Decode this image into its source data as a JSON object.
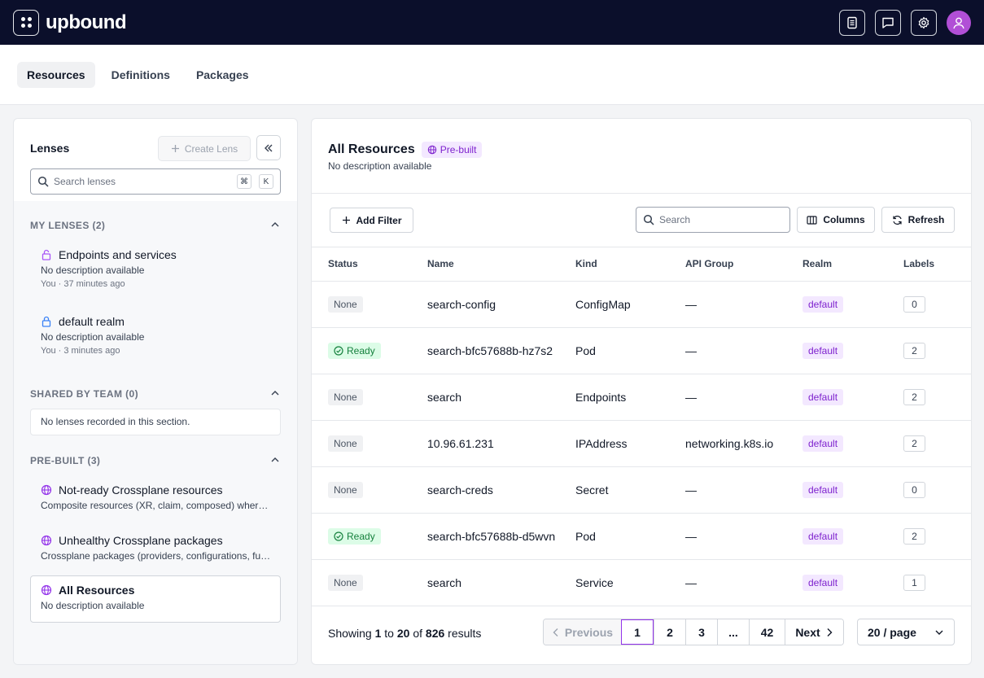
{
  "topbar": {
    "logo": "upbound",
    "icons": [
      "docs-icon",
      "chat-icon",
      "gear-icon",
      "user-icon"
    ]
  },
  "tabs": [
    {
      "label": "Resources",
      "active": true
    },
    {
      "label": "Definitions",
      "active": false
    },
    {
      "label": "Packages",
      "active": false
    }
  ],
  "lenses": {
    "title": "Lenses",
    "create_label": "Create Lens",
    "search_placeholder": "Search lenses",
    "shortcut_keys": [
      "⌘",
      "K"
    ],
    "sections": {
      "mine": {
        "heading": "MY LENSES (2)",
        "items": [
          {
            "name": "Endpoints and services",
            "description": "No description available",
            "owner": "You",
            "time": "37 minutes ago",
            "lock_color": "#a855f7"
          },
          {
            "name": "default realm",
            "description": "No description available",
            "owner": "You",
            "time": "3 minutes ago",
            "lock_color": "#3b82f6"
          }
        ]
      },
      "shared": {
        "heading": "SHARED BY TEAM (0)",
        "empty": "No lenses recorded in this section."
      },
      "prebuilt": {
        "heading": "PRE-BUILT (3)",
        "items": [
          {
            "name": "Not-ready Crossplane resources",
            "description": "Composite resources (XR, claim, composed) where status is not ready"
          },
          {
            "name": "Unhealthy Crossplane packages",
            "description": "Crossplane packages (providers, configurations, functions) that are unhealthy"
          },
          {
            "name": "All Resources",
            "description": "No description available"
          }
        ]
      }
    }
  },
  "main": {
    "title": "All Resources",
    "badge": "Pre-built",
    "description": "No description available",
    "add_filter": "Add Filter",
    "search_placeholder": "Search",
    "columns_label": "Columns",
    "refresh_label": "Refresh",
    "headers": [
      "Status",
      "Name",
      "Kind",
      "API Group",
      "Realm",
      "Labels"
    ],
    "rows": [
      {
        "status": "None",
        "name": "search-config",
        "kind": "ConfigMap",
        "api_group": "—",
        "realm": "default",
        "labels": "0"
      },
      {
        "status": "Ready",
        "name": "search-bfc57688b-hz7s2",
        "kind": "Pod",
        "api_group": "—",
        "realm": "default",
        "labels": "2"
      },
      {
        "status": "None",
        "name": "search",
        "kind": "Endpoints",
        "api_group": "—",
        "realm": "default",
        "labels": "2"
      },
      {
        "status": "None",
        "name": "10.96.61.231",
        "kind": "IPAddress",
        "api_group": "networking.k8s.io",
        "realm": "default",
        "labels": "2"
      },
      {
        "status": "None",
        "name": "search-creds",
        "kind": "Secret",
        "api_group": "—",
        "realm": "default",
        "labels": "0"
      },
      {
        "status": "Ready",
        "name": "search-bfc57688b-d5wvn",
        "kind": "Pod",
        "api_group": "—",
        "realm": "default",
        "labels": "2"
      },
      {
        "status": "None",
        "name": "search",
        "kind": "Service",
        "api_group": "—",
        "realm": "default",
        "labels": "1"
      }
    ],
    "footer": {
      "showing_prefix": "Showing",
      "from": "1",
      "to_word": "to",
      "to": "20",
      "of_word": "of",
      "total": "826",
      "results_word": "results",
      "previous": "Previous",
      "next": "Next",
      "pages": [
        "1",
        "2",
        "3",
        "...",
        "42"
      ],
      "current_page": "1",
      "per_page": "20 / page"
    }
  }
}
